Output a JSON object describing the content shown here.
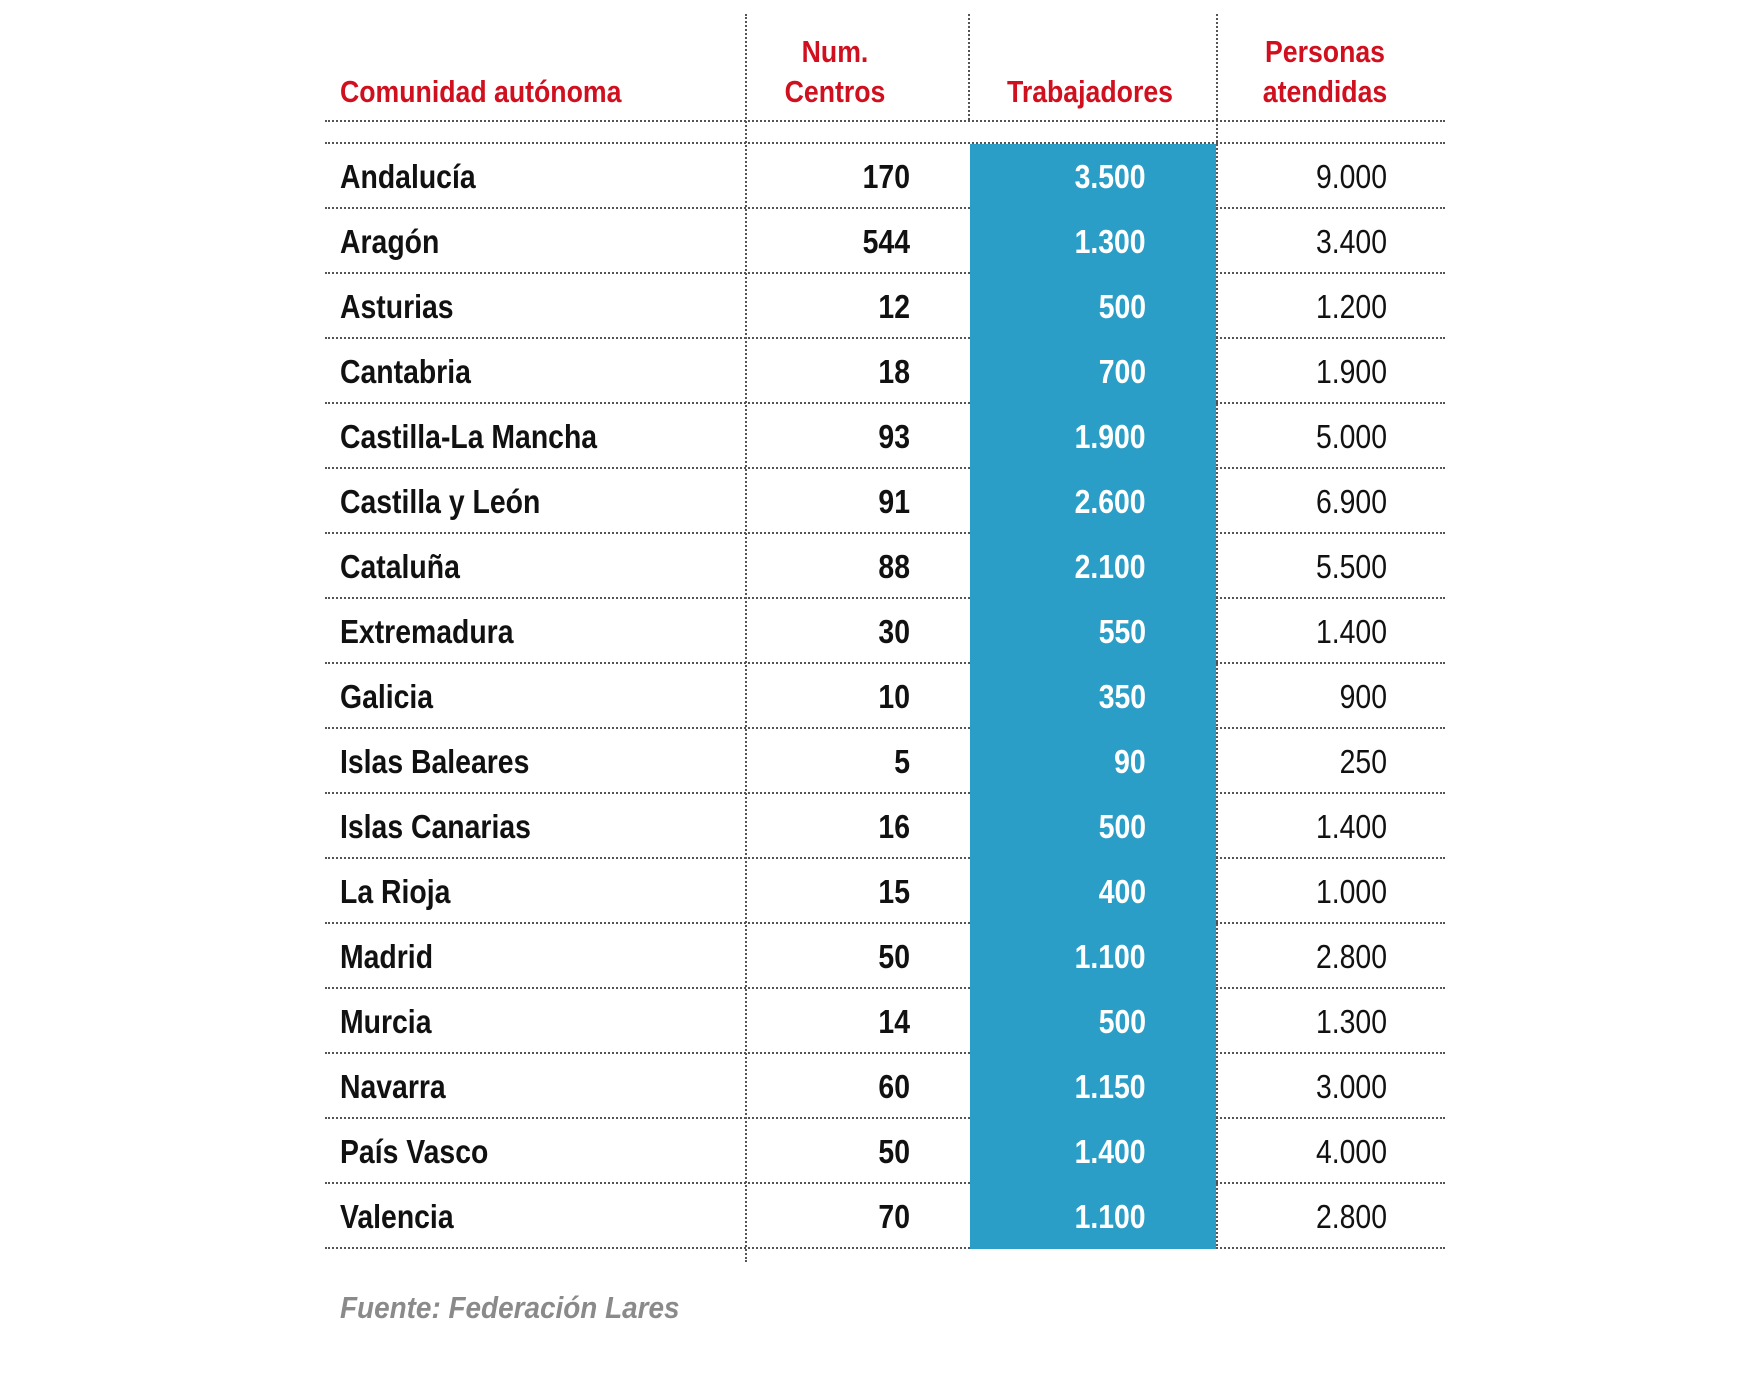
{
  "chart_data": {
    "type": "table",
    "columns": [
      "Comunidad autónoma",
      "Num. Centros",
      "Trabajadores",
      "Personas atendidas"
    ],
    "header": {
      "region": "Comunidad autónoma",
      "centros_line1": "Num.",
      "centros_line2": "Centros",
      "trabajadores": "Trabajadores",
      "personas_line1": "Personas",
      "personas_line2": "atendidas"
    },
    "rows": [
      {
        "region": "Andalucía",
        "centros": "170",
        "trabajadores": "3.500",
        "personas": "9.000"
      },
      {
        "region": "Aragón",
        "centros": "544",
        "trabajadores": "1.300",
        "personas": "3.400"
      },
      {
        "region": "Asturias",
        "centros": "12",
        "trabajadores": "500",
        "personas": "1.200"
      },
      {
        "region": "Cantabria",
        "centros": "18",
        "trabajadores": "700",
        "personas": "1.900"
      },
      {
        "region": "Castilla-La Mancha",
        "centros": "93",
        "trabajadores": "1.900",
        "personas": "5.000"
      },
      {
        "region": "Castilla y León",
        "centros": "91",
        "trabajadores": "2.600",
        "personas": "6.900"
      },
      {
        "region": "Cataluña",
        "centros": "88",
        "trabajadores": "2.100",
        "personas": "5.500"
      },
      {
        "region": "Extremadura",
        "centros": "30",
        "trabajadores": "550",
        "personas": "1.400"
      },
      {
        "region": "Galicia",
        "centros": "10",
        "trabajadores": "350",
        "personas": "900"
      },
      {
        "region": "Islas Baleares",
        "centros": "5",
        "trabajadores": "90",
        "personas": "250"
      },
      {
        "region": "Islas Canarias",
        "centros": "16",
        "trabajadores": "500",
        "personas": "1.400"
      },
      {
        "region": "La Rioja",
        "centros": "15",
        "trabajadores": "400",
        "personas": "1.000"
      },
      {
        "region": "Madrid",
        "centros": "50",
        "trabajadores": "1.100",
        "personas": "2.800"
      },
      {
        "region": "Murcia",
        "centros": "14",
        "trabajadores": "500",
        "personas": "1.300"
      },
      {
        "region": "Navarra",
        "centros": "60",
        "trabajadores": "1.150",
        "personas": "3.000"
      },
      {
        "region": "País Vasco",
        "centros": "50",
        "trabajadores": "1.400",
        "personas": "4.000"
      },
      {
        "region": "Valencia",
        "centros": "70",
        "trabajadores": "1.100",
        "personas": "2.800"
      }
    ],
    "source": "Fuente: Federación Lares",
    "colors": {
      "header_text": "#d0101e",
      "highlight_column": "#2a9ec6",
      "source_text": "#8a8a8a"
    }
  }
}
